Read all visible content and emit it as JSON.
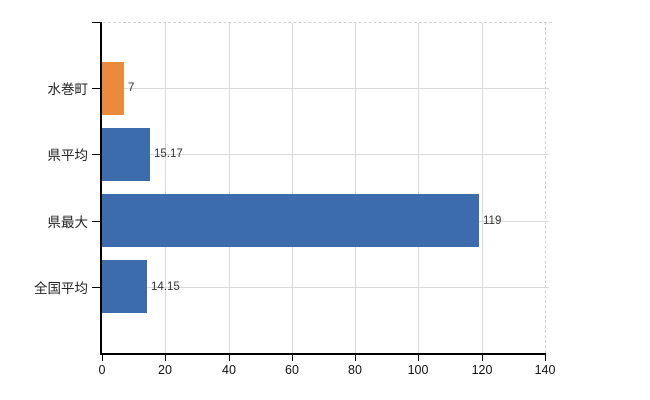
{
  "chart_data": {
    "type": "bar",
    "orientation": "horizontal",
    "title": "",
    "xlabel": "",
    "ylabel": "",
    "categories": [
      "水巻町",
      "県平均",
      "県最大",
      "全国平均"
    ],
    "values": [
      7,
      15.17,
      119,
      14.15
    ],
    "value_labels": [
      "7",
      "15.17",
      "119",
      "14.15"
    ],
    "series": [
      {
        "name": "value",
        "values": [
          7,
          15.17,
          119,
          14.15
        ],
        "colors": [
          "#e98a3c",
          "#3c6cac",
          "#3c6cac",
          "#3c6cac"
        ]
      }
    ],
    "xlim": [
      0,
      140
    ],
    "xticks": [
      0,
      20,
      40,
      60,
      80,
      100,
      120,
      140
    ],
    "grid": true,
    "legend": false
  },
  "colors": {
    "highlight_bar": "#e98a3c",
    "default_bar": "#3c6cac",
    "grid": "#d9d9d9",
    "dashed_border": "#d2d2d2",
    "axis": "#000000",
    "text": "#333333",
    "background": "#ffffff"
  }
}
